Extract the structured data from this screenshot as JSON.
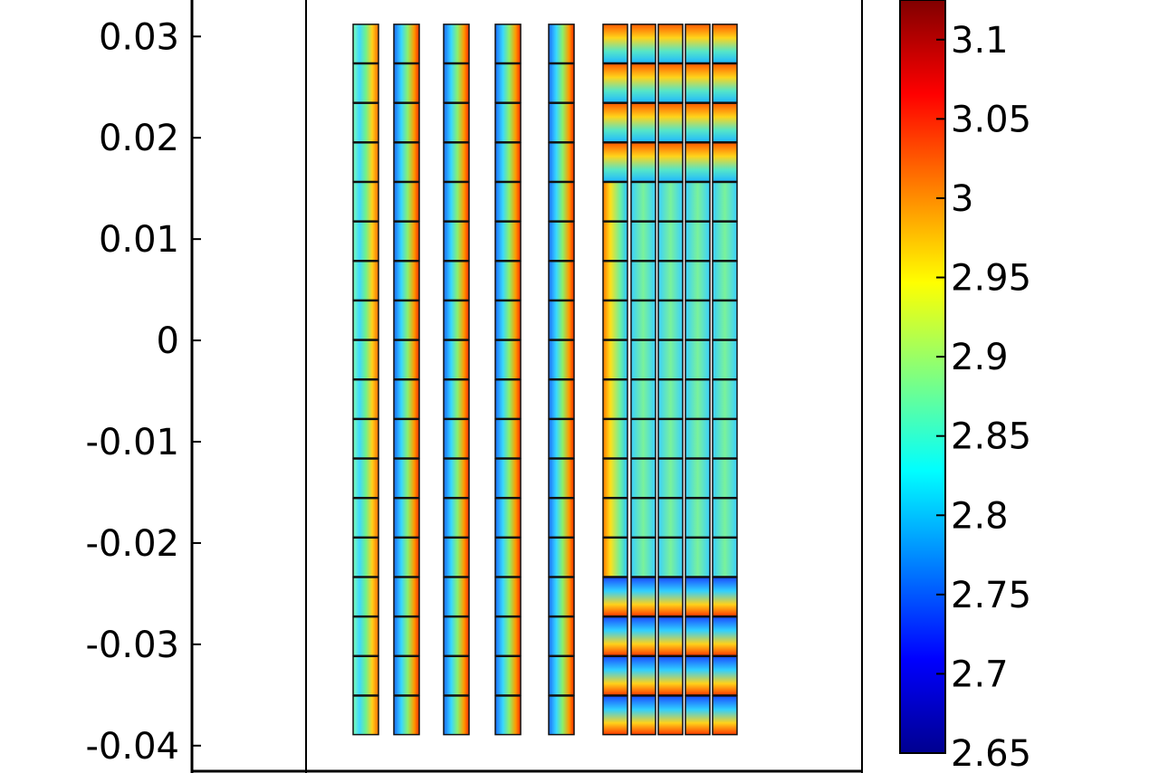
{
  "chart_data": {
    "type": "heatmap",
    "title": "",
    "xlabel": "",
    "ylabel": "",
    "y_ticks": [
      "0.03",
      "0.02",
      "0.01",
      "0",
      "-0.01",
      "-0.02",
      "-0.03",
      "-0.04"
    ],
    "y_tick_values": [
      0.03,
      0.02,
      0.01,
      0,
      -0.01,
      -0.02,
      -0.03,
      -0.04
    ],
    "ylim": [
      -0.0427,
      0.0336
    ],
    "colorbar": {
      "colormap": "jet",
      "min": 2.65,
      "max": 3.125,
      "ticks": [
        "3.1",
        "3.05",
        "3",
        "2.95",
        "2.9",
        "2.85",
        "2.8",
        "2.75",
        "2.7",
        "2.65"
      ],
      "tick_values": [
        3.1,
        3.05,
        3.0,
        2.95,
        2.9,
        2.85,
        2.8,
        2.75,
        2.7,
        2.65
      ]
    },
    "cells": {
      "rows": 18,
      "thin_columns": 5,
      "wide_block_columns": 5,
      "y_cell_bottom": -0.039,
      "y_cell_height": 0.0039,
      "value_range": [
        2.65,
        3.1
      ]
    }
  },
  "colors": {
    "axis": "#000000",
    "background": "#ffffff",
    "cell_border": "#111111"
  }
}
